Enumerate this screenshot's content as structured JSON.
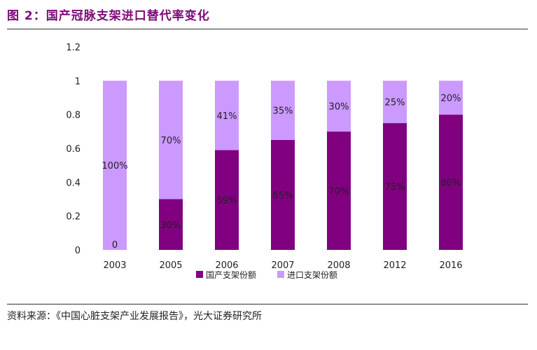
{
  "title": "图 2：国产冠脉支架进口替代率变化",
  "source": "资料来源：《中国心脏支架产业发展报告》，光大证券研究所",
  "colors": {
    "title": "#7B0A78",
    "domestic": "#800080",
    "imported": "#CC99FF"
  },
  "chart_data": {
    "type": "bar",
    "stacked": true,
    "categories": [
      "2003",
      "2005",
      "2006",
      "2007",
      "2008",
      "2012",
      "2016"
    ],
    "series": [
      {
        "name": "国产支架份额",
        "values": [
          0,
          0.3,
          0.59,
          0.65,
          0.7,
          0.75,
          0.8
        ],
        "labels": [
          "0",
          "30%",
          "59%",
          "65%",
          "70%",
          "75%",
          "80%"
        ]
      },
      {
        "name": "进口支架份额",
        "values": [
          1.0,
          0.7,
          0.41,
          0.35,
          0.3,
          0.25,
          0.2
        ],
        "labels": [
          "100%",
          "70%",
          "41%",
          "35%",
          "30%",
          "25%",
          "20%"
        ]
      }
    ],
    "yticks": [
      "0",
      "0.2",
      "0.4",
      "0.6",
      "0.8",
      "1",
      "1.2"
    ],
    "ylim": [
      0,
      1.2
    ],
    "grid": false,
    "legend_position": "bottom"
  }
}
